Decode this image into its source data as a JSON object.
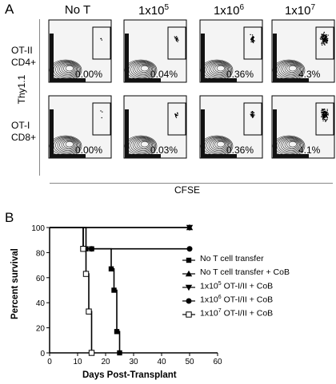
{
  "panel_a": {
    "letter": "A",
    "columns": [
      {
        "base": "No T",
        "exp": ""
      },
      {
        "base": "1x10",
        "exp": "5"
      },
      {
        "base": "1x10",
        "exp": "6"
      },
      {
        "base": "1x10",
        "exp": "7"
      }
    ],
    "rows": [
      {
        "line1": "OT-II",
        "line2": "CD4+",
        "percents": [
          "0.00%",
          "0.04%",
          "0.36%",
          "4.3%"
        ]
      },
      {
        "line1": "OT-I",
        "line2": "CD8+",
        "percents": [
          "0.00%",
          "0.03%",
          "0.36%",
          "4.1%"
        ]
      }
    ],
    "y_axis_label": "Thy1.1",
    "x_axis_label": "CFSE"
  },
  "panel_b": {
    "letter": "B",
    "ylabel": "Percent survival",
    "xlabel": "Days Post-Transplant",
    "legend": [
      {
        "marker": "filled-square",
        "text": "No T cell transfer",
        "exp": "",
        "suffix": ""
      },
      {
        "marker": "filled-triangle-up",
        "text": "No T cell transfer + CoB",
        "exp": "",
        "suffix": ""
      },
      {
        "marker": "filled-triangle-down",
        "text": "1x10",
        "exp": "5",
        "suffix": " OT-I/II + CoB"
      },
      {
        "marker": "filled-circle",
        "text": "1x10",
        "exp": "6",
        "suffix": " OT-I/II + CoB"
      },
      {
        "marker": "open-square",
        "text": "1x10",
        "exp": "7",
        "suffix": " OT-I/II + CoB"
      }
    ]
  },
  "chart_data": {
    "type": "line",
    "xlabel": "Days Post-Transplant",
    "ylabel": "Percent survival",
    "xlim": [
      0,
      60
    ],
    "ylim": [
      0,
      100
    ],
    "xticks": [
      0,
      10,
      20,
      30,
      40,
      50,
      60
    ],
    "yticks": [
      0,
      20,
      40,
      60,
      80,
      100
    ],
    "step": true,
    "series": [
      {
        "name": "No T cell transfer",
        "marker": "filled-square",
        "x": [
          0,
          13,
          15,
          22,
          23,
          24,
          25
        ],
        "y": [
          100,
          83,
          83,
          67,
          50,
          17,
          0
        ]
      },
      {
        "name": "No T cell transfer + CoB",
        "marker": "filled-triangle-up",
        "x": [
          0,
          50
        ],
        "y": [
          100,
          100
        ]
      },
      {
        "name": "1x10^5 OT-I/II + CoB",
        "marker": "filled-triangle-down",
        "x": [
          0,
          50
        ],
        "y": [
          100,
          100
        ]
      },
      {
        "name": "1x10^6 OT-I/II + CoB",
        "marker": "filled-circle",
        "x": [
          0,
          12,
          15,
          50
        ],
        "y": [
          100,
          83,
          83,
          83
        ]
      },
      {
        "name": "1x10^7 OT-I/II + CoB",
        "marker": "open-square",
        "x": [
          0,
          12,
          13,
          14,
          15
        ],
        "y": [
          100,
          83,
          63,
          33,
          0
        ]
      }
    ]
  }
}
